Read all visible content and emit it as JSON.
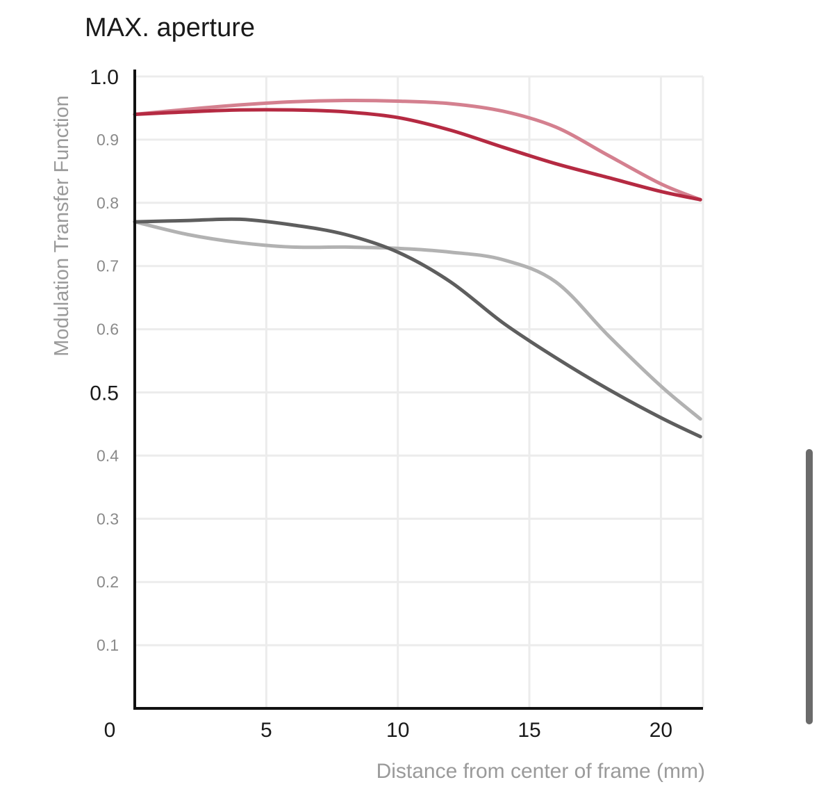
{
  "chart_data": {
    "type": "line",
    "title": "MAX. aperture",
    "xlabel": "Distance from center of frame (mm)",
    "ylabel": "Modulation Transfer Function",
    "xlim": [
      0,
      21.6
    ],
    "ylim": [
      0,
      1.0
    ],
    "x_ticks": [
      {
        "value": 0,
        "label": "0"
      },
      {
        "value": 5,
        "label": "5"
      },
      {
        "value": 10,
        "label": "10"
      },
      {
        "value": 15,
        "label": "15"
      },
      {
        "value": 20,
        "label": "20"
      }
    ],
    "y_ticks": [
      {
        "value": 1.0,
        "label": "1.0",
        "major": true
      },
      {
        "value": 0.9,
        "label": "0.9",
        "major": false
      },
      {
        "value": 0.8,
        "label": "0.8",
        "major": false
      },
      {
        "value": 0.7,
        "label": "0.7",
        "major": false
      },
      {
        "value": 0.6,
        "label": "0.6",
        "major": false
      },
      {
        "value": 0.5,
        "label": "0.5",
        "major": true
      },
      {
        "value": 0.4,
        "label": "0.4",
        "major": false
      },
      {
        "value": 0.3,
        "label": "0.3",
        "major": false
      },
      {
        "value": 0.2,
        "label": "0.2",
        "major": false
      },
      {
        "value": 0.1,
        "label": "0.1",
        "major": false
      }
    ],
    "grid": true,
    "series": [
      {
        "color": "#d4808f",
        "x": [
          0,
          2,
          4,
          6,
          8,
          10,
          12,
          14,
          16,
          18,
          20,
          21.5
        ],
        "y": [
          0.94,
          0.948,
          0.955,
          0.96,
          0.962,
          0.961,
          0.957,
          0.945,
          0.92,
          0.875,
          0.83,
          0.805
        ]
      },
      {
        "color": "#b52a42",
        "x": [
          0,
          2,
          4,
          6,
          8,
          10,
          12,
          14,
          16,
          18,
          20,
          21.5
        ],
        "y": [
          0.94,
          0.944,
          0.947,
          0.947,
          0.944,
          0.935,
          0.915,
          0.888,
          0.862,
          0.84,
          0.818,
          0.805
        ]
      },
      {
        "color": "#b2b2b2",
        "x": [
          0,
          2,
          4,
          6,
          8,
          10,
          12,
          14,
          16,
          18,
          20,
          21.5
        ],
        "y": [
          0.77,
          0.75,
          0.737,
          0.73,
          0.73,
          0.728,
          0.722,
          0.71,
          0.675,
          0.59,
          0.51,
          0.458
        ]
      },
      {
        "color": "#5e5e5e",
        "x": [
          0,
          2,
          4,
          6,
          8,
          10,
          12,
          14,
          16,
          18,
          20,
          21.5
        ],
        "y": [
          0.77,
          0.772,
          0.774,
          0.765,
          0.75,
          0.722,
          0.675,
          0.61,
          0.555,
          0.505,
          0.46,
          0.43
        ]
      }
    ]
  }
}
